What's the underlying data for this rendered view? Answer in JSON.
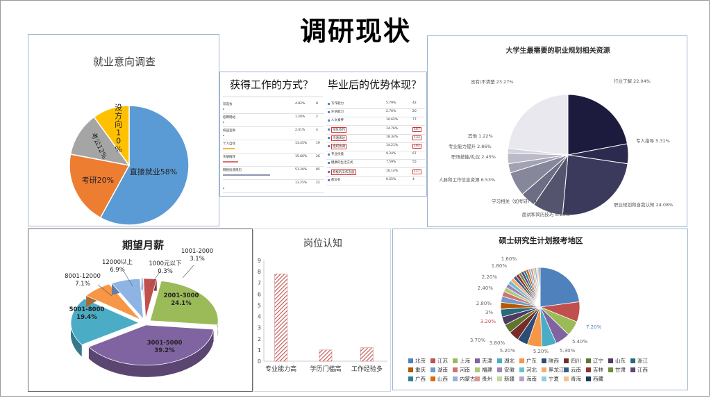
{
  "page_title": "调研现状",
  "chart_data": [
    {
      "id": "employment-intention",
      "type": "pie",
      "title": "就业意向调查",
      "slices": [
        {
          "label": "直接就业58%",
          "value": 58,
          "color": "#5b9bd5"
        },
        {
          "label": "考研20%",
          "value": 20,
          "color": "#ed7d31"
        },
        {
          "label": "考公12%",
          "value": 12,
          "color": "#a5a5a5"
        },
        {
          "label": "没方向10%",
          "value": 10,
          "color": "#ffc000"
        }
      ]
    },
    {
      "id": "job-methods",
      "type": "table",
      "title": "获得工作的方式？",
      "rows": [
        {
          "name": "双选会",
          "pct": "4.82%",
          "count": "8",
          "bar": 0
        },
        {
          "name": "招聘网站",
          "pct": "1.20%",
          "count": "2",
          "bar": 0
        },
        {
          "name": "校园宣讲",
          "pct": "2.41%",
          "count": "4",
          "bar": 0
        },
        {
          "name": "个人自荐",
          "pct": "11.45%",
          "count": "19",
          "bar": 0.25
        },
        {
          "name": "亲朋推荐",
          "pct": "15.66%",
          "count": "26",
          "bar": 0.32
        },
        {
          "name": "网络投递简历",
          "pct": "51.20%",
          "count": "85",
          "bar": 1.0
        },
        {
          "name": "",
          "pct": "13.25%",
          "count": "22",
          "bar": 0
        }
      ]
    },
    {
      "id": "graduate-advantages",
      "type": "table",
      "title": "毕业后的优势体现？",
      "rows": [
        {
          "name": "写作能力",
          "pct": "5.79%",
          "count": "42",
          "highlight": false
        },
        {
          "name": "外语能力",
          "pct": "2.76%",
          "count": "20",
          "highlight": false
        },
        {
          "name": "人文素养",
          "pct": "10.62%",
          "count": "77",
          "highlight": false
        },
        {
          "name": "团队协作",
          "pct": "14.76%",
          "count": "107",
          "highlight": true
        },
        {
          "name": "沟通表达",
          "pct": "18.34%",
          "count": "133",
          "highlight": true
        },
        {
          "name": "组织协调",
          "pct": "14.21%",
          "count": "103",
          "highlight": true
        },
        {
          "name": "专业技能",
          "pct": "9.24%",
          "count": "67",
          "highlight": false
        },
        {
          "name": "健康的生活方式",
          "pct": "7.59%",
          "count": "55",
          "highlight": false
        },
        {
          "name": "积极的工作态度",
          "pct": "16.14%",
          "count": "117",
          "highlight": true
        },
        {
          "name": "都没有",
          "pct": "0.55%",
          "count": "4",
          "highlight": false
        }
      ]
    },
    {
      "id": "career-resources",
      "type": "pie",
      "title": "大学生最需要的职业规划相关资源",
      "slices": [
        {
          "label": "行业了解 22.04%",
          "value": 22.04,
          "color": "#1c1a3d"
        },
        {
          "label": "专人指导 5.31%",
          "value": 5.31,
          "color": "#2c2a4e"
        },
        {
          "label": "职业规划和自我认知 24.08%",
          "value": 24.08,
          "color": "#3c3a5c"
        },
        {
          "label": "面试和简历技巧 8.16%",
          "value": 8.16,
          "color": "#55546f"
        },
        {
          "label": "学习相关（如考研） 4.08%",
          "value": 4.08,
          "color": "#6d6d85"
        },
        {
          "label": "人脉和工作信息资源 6.53%",
          "value": 6.53,
          "color": "#87879c"
        },
        {
          "label": "职场技能/礼仪 2.45%",
          "value": 2.45,
          "color": "#a2a2b3"
        },
        {
          "label": "专业能力提升 2.86%",
          "value": 2.86,
          "color": "#babac8"
        },
        {
          "label": "其他 1.22%",
          "value": 1.22,
          "color": "#d2d2dc"
        },
        {
          "label": "没有/不清楚 23.27%",
          "value": 23.27,
          "color": "#e8e8ee"
        }
      ]
    },
    {
      "id": "expected-salary",
      "type": "pie",
      "title": "期望月薪",
      "slices": [
        {
          "label": "1001-2000",
          "pct": "3.1%",
          "value": 3.1,
          "color": "#c0504d"
        },
        {
          "label": "2001-3000",
          "pct": "24.1%",
          "value": 24.1,
          "color": "#9bbb59"
        },
        {
          "label": "3001-5000",
          "pct": "39.2%",
          "value": 39.2,
          "color": "#8064a2"
        },
        {
          "label": "5001-8000",
          "pct": "19.4%",
          "value": 19.4,
          "color": "#4bacc6"
        },
        {
          "label": "8001-12000",
          "pct": "7.1%",
          "value": 7.1,
          "color": "#f79646"
        },
        {
          "label": "12000以上",
          "pct": "6.9%",
          "value": 6.9,
          "color": "#8eb4e3"
        },
        {
          "label": "1000元以下",
          "pct": "0.3%",
          "value": 0.3,
          "color": "#4f81bd"
        }
      ]
    },
    {
      "id": "job-cognition",
      "type": "bar",
      "title": "岗位认知",
      "categories": [
        "专业能力高",
        "学历门槛高",
        "工作经验多"
      ],
      "values": [
        7.8,
        1.0,
        1.2
      ],
      "ylim": [
        0,
        9
      ],
      "yticks": [
        "0",
        "1",
        "2",
        "3",
        "4",
        "5",
        "6",
        "7",
        "8",
        "9"
      ],
      "grid": false
    },
    {
      "id": "postgrad-regions",
      "type": "pie",
      "title": "硕士研究生计划报考地区",
      "slice_labels": [
        "7.20%",
        "5.40%",
        "5.30%",
        "5.20%",
        "5.20%",
        "3.80%",
        "3.70%",
        "3.20%",
        "3%",
        "2.80%",
        "2.40%",
        "2.20%",
        "1.80%",
        "1.60%"
      ],
      "legend": [
        "北京",
        "江苏",
        "上海",
        "天津",
        "湖北",
        "广东",
        "陕西",
        "四川",
        "辽宁",
        "山东",
        "浙江",
        "重庆",
        "湖南",
        "河南",
        "福建",
        "安徽",
        "河北",
        "黑龙江",
        "云南",
        "吉林",
        "甘肃",
        "江西",
        "广西",
        "山西",
        "内蒙古",
        "贵州",
        "新疆",
        "海南",
        "宁夏",
        "青海",
        "西藏"
      ],
      "colors": [
        "#4f81bd",
        "#c0504d",
        "#9bbb59",
        "#8064a2",
        "#4bacc6",
        "#f79646",
        "#2c4d75",
        "#772c2a",
        "#5f7530",
        "#4d3b62",
        "#276a7c",
        "#b65708",
        "#729aca",
        "#cd7371",
        "#afc97a",
        "#9d87b8",
        "#6fbdd1",
        "#f9ab6b",
        "#3a5e8c",
        "#8e3432",
        "#718b3a",
        "#5c4776",
        "#2f7f93",
        "#d9690a",
        "#95b3d7",
        "#d99694",
        "#c3d69b",
        "#b3a2c7",
        "#93cddd",
        "#fac090",
        "#1f3a5a"
      ]
    }
  ]
}
